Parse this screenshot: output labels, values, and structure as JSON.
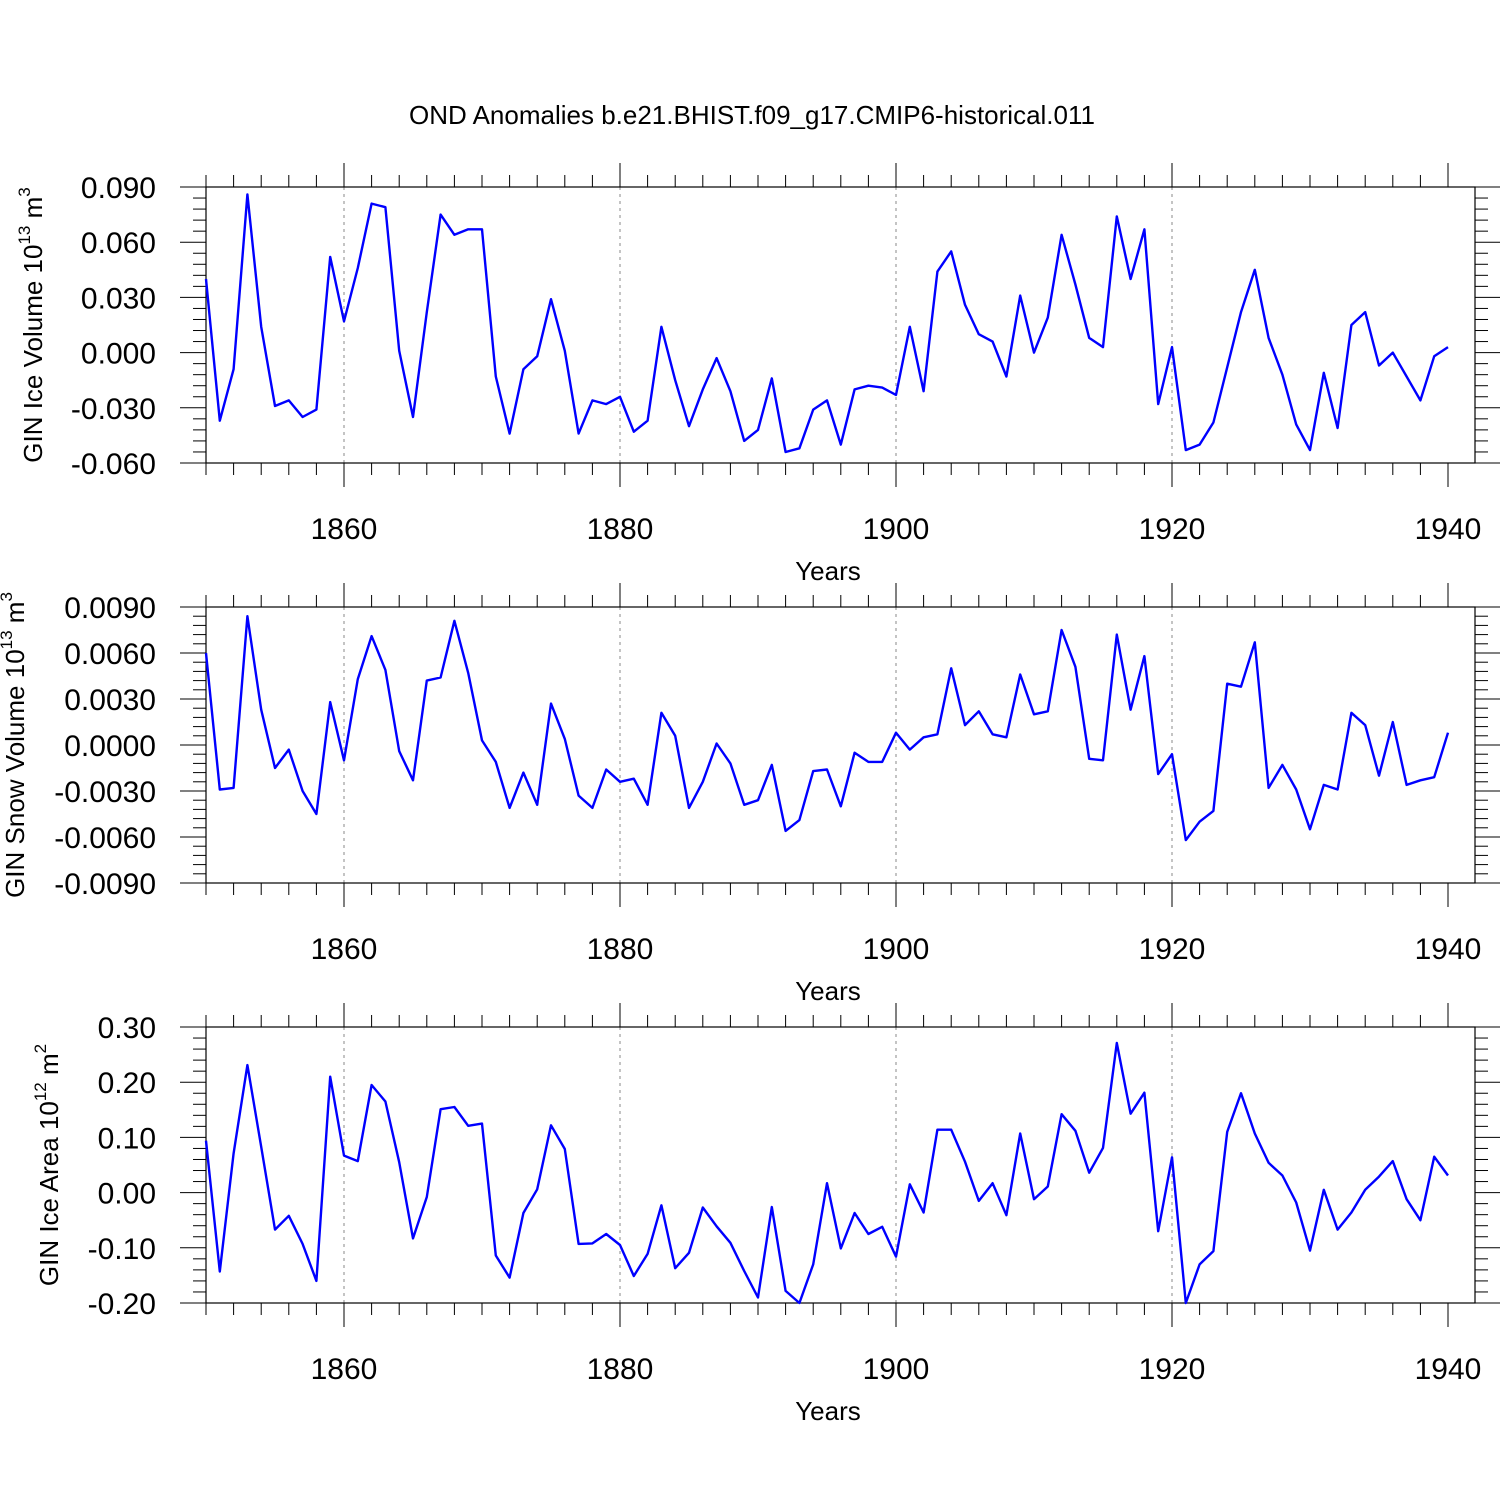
{
  "title": "OND Anomalies b.e21.BHIST.f09_g17.CMIP6-historical.011",
  "colors": {
    "line": "#0000ff",
    "axis": "#000000",
    "grid": "#888888"
  },
  "chart_data": [
    {
      "type": "line",
      "ylabel": "GIN Ice Volume 10",
      "ylabel_exp": "13",
      "ylabel_unit": " m",
      "ylabel_unit_exp": "3",
      "xlabel": "Years",
      "xlim": [
        1850,
        1940
      ],
      "ylim": [
        -0.06,
        0.09
      ],
      "xticks": [
        1860,
        1880,
        1900,
        1920,
        1940
      ],
      "yticks": [
        "-0.060",
        "-0.030",
        "0.000",
        "0.030",
        "0.060",
        "0.090"
      ],
      "grid": "vertical dashed at major years",
      "series": [
        {
          "name": "GIN Ice Volume",
          "x_start": 1850,
          "values": [
            0.04,
            -0.037,
            -0.009,
            0.086,
            0.014,
            -0.029,
            -0.026,
            -0.035,
            -0.031,
            0.052,
            0.017,
            0.046,
            0.081,
            0.079,
            0.001,
            -0.035,
            0.022,
            0.075,
            0.064,
            0.067,
            0.067,
            -0.013,
            -0.044,
            -0.009,
            -0.002,
            0.029,
            0.001,
            -0.044,
            -0.026,
            -0.028,
            -0.024,
            -0.043,
            -0.037,
            0.014,
            -0.015,
            -0.04,
            -0.02,
            -0.003,
            -0.021,
            -0.048,
            -0.042,
            -0.014,
            -0.054,
            -0.052,
            -0.031,
            -0.026,
            -0.05,
            -0.02,
            -0.018,
            -0.019,
            -0.023,
            0.014,
            -0.021,
            0.044,
            0.055,
            0.026,
            0.01,
            0.006,
            -0.013,
            0.031,
            0.0,
            0.019,
            0.064,
            0.037,
            0.008,
            0.003,
            0.074,
            0.04,
            0.067,
            -0.028,
            0.003,
            -0.053,
            -0.05,
            -0.038,
            -0.008,
            0.022,
            0.045,
            0.008,
            -0.012,
            -0.039,
            -0.053,
            -0.011,
            -0.041,
            0.015,
            0.022,
            -0.007,
            0.0,
            -0.013,
            -0.026,
            -0.002,
            0.003
          ]
        }
      ]
    },
    {
      "type": "line",
      "ylabel": "GIN Snow Volume 10",
      "ylabel_exp": "13",
      "ylabel_unit": " m",
      "ylabel_unit_exp": "3",
      "xlabel": "Years",
      "xlim": [
        1850,
        1940
      ],
      "ylim": [
        -0.009,
        0.009
      ],
      "xticks": [
        1860,
        1880,
        1900,
        1920,
        1940
      ],
      "yticks": [
        "-0.0090",
        "-0.0060",
        "-0.0030",
        "0.0000",
        "0.0030",
        "0.0060",
        "0.0090"
      ],
      "grid": "vertical dashed at major years",
      "series": [
        {
          "name": "GIN Snow Volume",
          "x_start": 1850,
          "values": [
            0.006,
            -0.0029,
            -0.0028,
            0.0084,
            0.0023,
            -0.0015,
            -0.0003,
            -0.003,
            -0.0045,
            0.0028,
            -0.001,
            0.0043,
            0.0071,
            0.0049,
            -0.0004,
            -0.0023,
            0.0042,
            0.0044,
            0.0081,
            0.0047,
            0.0003,
            -0.0011,
            -0.0041,
            -0.0018,
            -0.0039,
            0.0027,
            0.0004,
            -0.0033,
            -0.0041,
            -0.0016,
            -0.0024,
            -0.0022,
            -0.0039,
            0.0021,
            0.0006,
            -0.0041,
            -0.0024,
            0.0001,
            -0.0012,
            -0.0039,
            -0.0036,
            -0.0013,
            -0.0056,
            -0.0049,
            -0.0017,
            -0.0016,
            -0.004,
            -0.0005,
            -0.0011,
            -0.0011,
            0.0008,
            -0.0003,
            0.0005,
            0.0007,
            0.005,
            0.0013,
            0.0022,
            0.0007,
            0.0005,
            0.0046,
            0.002,
            0.0022,
            0.0075,
            0.0051,
            -0.0009,
            -0.001,
            0.0072,
            0.0023,
            0.0058,
            -0.0019,
            -0.0006,
            -0.0062,
            -0.005,
            -0.0043,
            0.004,
            0.0038,
            0.0067,
            -0.0028,
            -0.0013,
            -0.0029,
            -0.0055,
            -0.0026,
            -0.0029,
            0.0021,
            0.0013,
            -0.002,
            0.0015,
            -0.0026,
            -0.0023,
            -0.0021,
            0.0008
          ]
        }
      ]
    },
    {
      "type": "line",
      "ylabel": "GIN Ice Area 10",
      "ylabel_exp": "12",
      "ylabel_unit": " m",
      "ylabel_unit_exp": "2",
      "xlabel": "Years",
      "xlim": [
        1850,
        1940
      ],
      "ylim": [
        -0.2,
        0.3
      ],
      "xticks": [
        1860,
        1880,
        1900,
        1920,
        1940
      ],
      "yticks": [
        "-0.20",
        "-0.10",
        "0.00",
        "0.10",
        "0.20",
        "0.30"
      ],
      "grid": "vertical dashed at major years",
      "series": [
        {
          "name": "GIN Ice Area",
          "x_start": 1850,
          "values": [
            0.094,
            -0.143,
            0.071,
            0.231,
            0.083,
            -0.067,
            -0.042,
            -0.093,
            -0.16,
            0.21,
            0.067,
            0.057,
            0.195,
            0.165,
            0.055,
            -0.083,
            -0.008,
            0.151,
            0.155,
            0.121,
            0.125,
            -0.114,
            -0.154,
            -0.037,
            0.006,
            0.122,
            0.079,
            -0.093,
            -0.092,
            -0.075,
            -0.095,
            -0.151,
            -0.111,
            -0.023,
            -0.137,
            -0.109,
            -0.027,
            -0.061,
            -0.091,
            -0.142,
            -0.19,
            -0.026,
            -0.178,
            -0.2,
            -0.13,
            0.017,
            -0.101,
            -0.037,
            -0.075,
            -0.062,
            -0.116,
            0.015,
            -0.036,
            0.114,
            0.114,
            0.056,
            -0.015,
            0.017,
            -0.041,
            0.107,
            -0.012,
            0.011,
            0.142,
            0.112,
            0.036,
            0.081,
            0.271,
            0.143,
            0.181,
            -0.07,
            0.064,
            -0.2,
            -0.13,
            -0.106,
            0.11,
            0.18,
            0.107,
            0.054,
            0.031,
            -0.018,
            -0.105,
            0.005,
            -0.067,
            -0.036,
            0.005,
            0.029,
            0.057,
            -0.012,
            -0.05,
            0.065,
            0.031
          ]
        }
      ]
    }
  ]
}
